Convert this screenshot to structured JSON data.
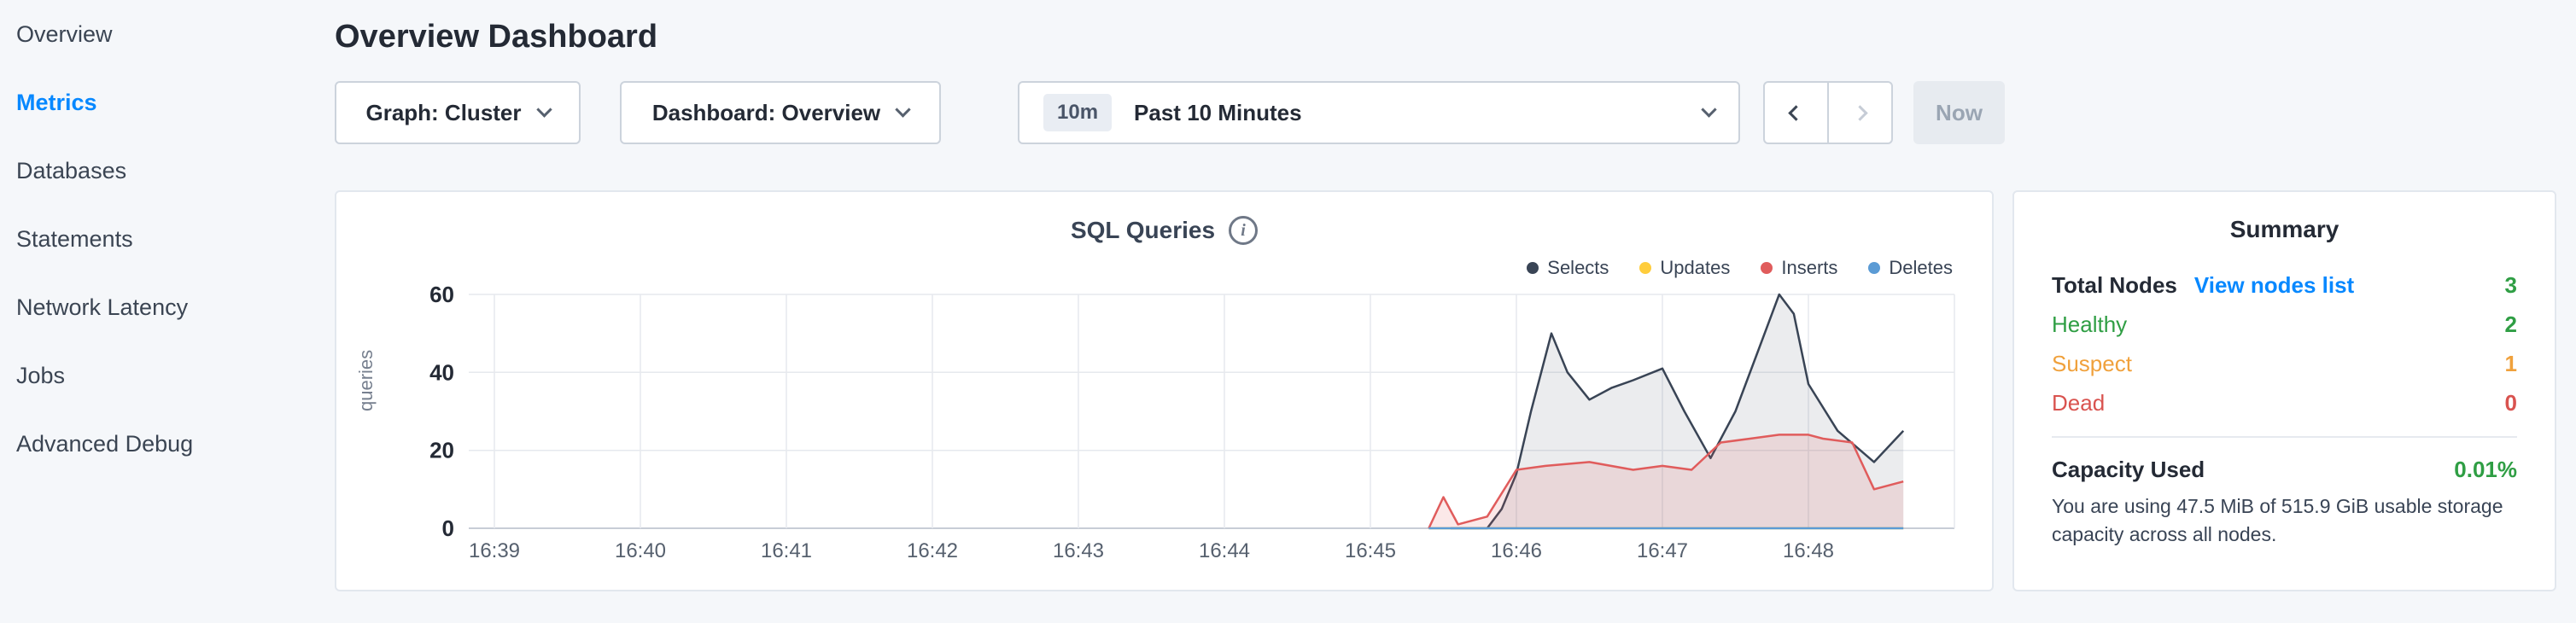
{
  "sidebar": {
    "items": [
      {
        "label": "Overview",
        "active": false
      },
      {
        "label": "Metrics",
        "active": true
      },
      {
        "label": "Databases",
        "active": false
      },
      {
        "label": "Statements",
        "active": false
      },
      {
        "label": "Network Latency",
        "active": false
      },
      {
        "label": "Jobs",
        "active": false
      },
      {
        "label": "Advanced Debug",
        "active": false
      }
    ]
  },
  "header": {
    "title": "Overview Dashboard"
  },
  "toolbar": {
    "graph_select": "Graph: Cluster",
    "dashboard_select": "Dashboard: Overview",
    "time_badge": "10m",
    "time_label": "Past 10 Minutes",
    "now_label": "Now"
  },
  "icons": {
    "info": "i"
  },
  "colors": {
    "accent_blue": "#0788ff",
    "green": "#2f9e44",
    "orange": "#f0a13c",
    "red": "#d9534f"
  },
  "chart_data": {
    "type": "line",
    "title": "SQL Queries",
    "ylabel": "queries",
    "ylim": [
      0,
      60
    ],
    "yticks": [
      0,
      20,
      40,
      60
    ],
    "x_domain": [
      0,
      10
    ],
    "x_tick_labels": [
      "16:39",
      "16:40",
      "16:41",
      "16:42",
      "16:43",
      "16:44",
      "16:45",
      "16:46",
      "16:47",
      "16:48"
    ],
    "legend_position": "top-right",
    "grid": true,
    "series": [
      {
        "name": "Selects",
        "color": "#394455",
        "fill": "rgba(57,68,85,0.10)",
        "x": [
          6.55,
          6.8,
          6.9,
          7.0,
          7.1,
          7.24,
          7.35,
          7.5,
          7.65,
          7.8,
          8.0,
          8.15,
          8.33,
          8.5,
          8.65,
          8.8,
          8.9,
          9.0,
          9.2,
          9.45,
          9.65
        ],
        "values": [
          0,
          0,
          5,
          14,
          30,
          50,
          40,
          33,
          36,
          38,
          41,
          30,
          18,
          30,
          45,
          60,
          55,
          37,
          25,
          17,
          25
        ]
      },
      {
        "name": "Updates",
        "color": "#ffcd3c",
        "fill": null,
        "x": [
          6.4,
          9.65
        ],
        "values": [
          0,
          0
        ]
      },
      {
        "name": "Inserts",
        "color": "#e05c5c",
        "fill": "rgba(224,92,92,0.14)",
        "x": [
          6.4,
          6.5,
          6.6,
          6.8,
          7.0,
          7.2,
          7.5,
          7.8,
          8.0,
          8.2,
          8.4,
          8.6,
          8.8,
          9.0,
          9.1,
          9.3,
          9.45,
          9.65
        ],
        "values": [
          0,
          8,
          1,
          3,
          15,
          16,
          17,
          15,
          16,
          15,
          22,
          23,
          24,
          24,
          23,
          22,
          10,
          12
        ]
      },
      {
        "name": "Deletes",
        "color": "#5b9bd5",
        "fill": null,
        "x": [
          6.4,
          9.65
        ],
        "values": [
          0,
          0
        ]
      }
    ]
  },
  "summary": {
    "title": "Summary",
    "total_nodes_label": "Total Nodes",
    "view_nodes_link": "View nodes list",
    "total_nodes_value": "3",
    "rows": [
      {
        "label": "Healthy",
        "value": "2",
        "color": "#2f9e44"
      },
      {
        "label": "Suspect",
        "value": "1",
        "color": "#f0a13c"
      },
      {
        "label": "Dead",
        "value": "0",
        "color": "#d9534f"
      }
    ],
    "capacity_label": "Capacity Used",
    "capacity_value": "0.01%",
    "capacity_note": "You are using 47.5 MiB of 515.9 GiB usable storage capacity across all nodes."
  }
}
